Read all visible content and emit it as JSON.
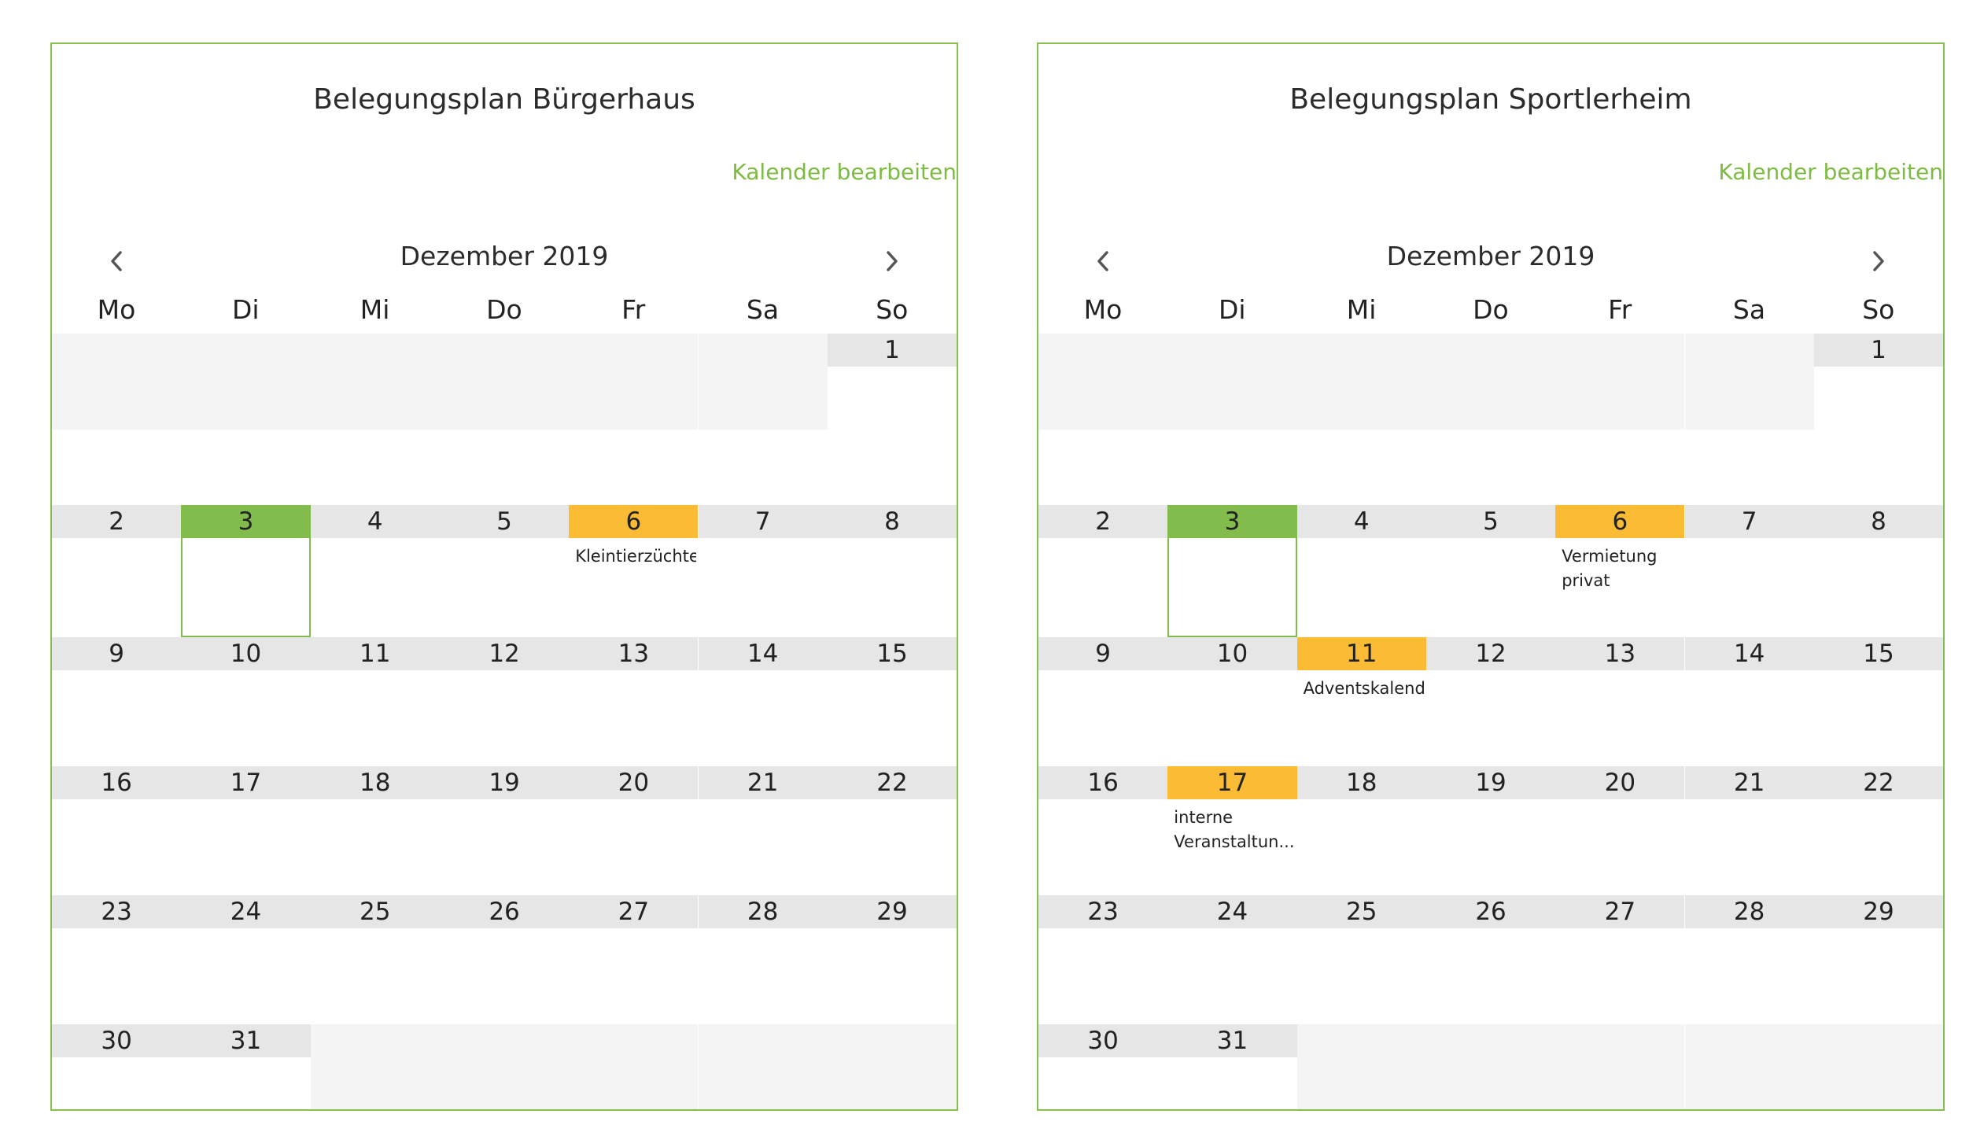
{
  "calendars": [
    {
      "title": "Belegungsplan Bürgerhaus",
      "edit_label": "Kalender bearbeiten",
      "month_label": "Dezember 2019",
      "weekdays": [
        "Mo",
        "Di",
        "Mi",
        "Do",
        "Fr",
        "Sa",
        "So"
      ],
      "weeks": [
        [
          null,
          null,
          null,
          null,
          null,
          null,
          1
        ],
        [
          2,
          3,
          4,
          5,
          6,
          7,
          8
        ],
        [
          9,
          10,
          11,
          12,
          13,
          14,
          15
        ],
        [
          16,
          17,
          18,
          19,
          20,
          21,
          22
        ],
        [
          23,
          24,
          25,
          26,
          27,
          28,
          29
        ],
        [
          30,
          31,
          null,
          null,
          null,
          null,
          null
        ]
      ],
      "today": 3,
      "events": [
        {
          "day": 6,
          "label": "Kleintierzüchter"
        }
      ]
    },
    {
      "title": "Belegungsplan Sportlerheim",
      "edit_label": "Kalender bearbeiten",
      "month_label": "Dezember 2019",
      "weekdays": [
        "Mo",
        "Di",
        "Mi",
        "Do",
        "Fr",
        "Sa",
        "So"
      ],
      "weeks": [
        [
          null,
          null,
          null,
          null,
          null,
          null,
          1
        ],
        [
          2,
          3,
          4,
          5,
          6,
          7,
          8
        ],
        [
          9,
          10,
          11,
          12,
          13,
          14,
          15
        ],
        [
          16,
          17,
          18,
          19,
          20,
          21,
          22
        ],
        [
          23,
          24,
          25,
          26,
          27,
          28,
          29
        ],
        [
          30,
          31,
          null,
          null,
          null,
          null,
          null
        ]
      ],
      "today": 3,
      "events": [
        {
          "day": 6,
          "label": "Vermietung\nprivat"
        },
        {
          "day": 11,
          "label": "Adventskalender"
        },
        {
          "day": 17,
          "label": "interne\nVeranstaltun..."
        }
      ]
    }
  ],
  "icons": {
    "prev": "chevron-left-icon",
    "next": "chevron-right-icon"
  },
  "colors": {
    "accent": "#82bc4c",
    "booked": "#fbbb34",
    "day_header": "#e6e6e6",
    "outside_month": "#f4f4f4"
  }
}
